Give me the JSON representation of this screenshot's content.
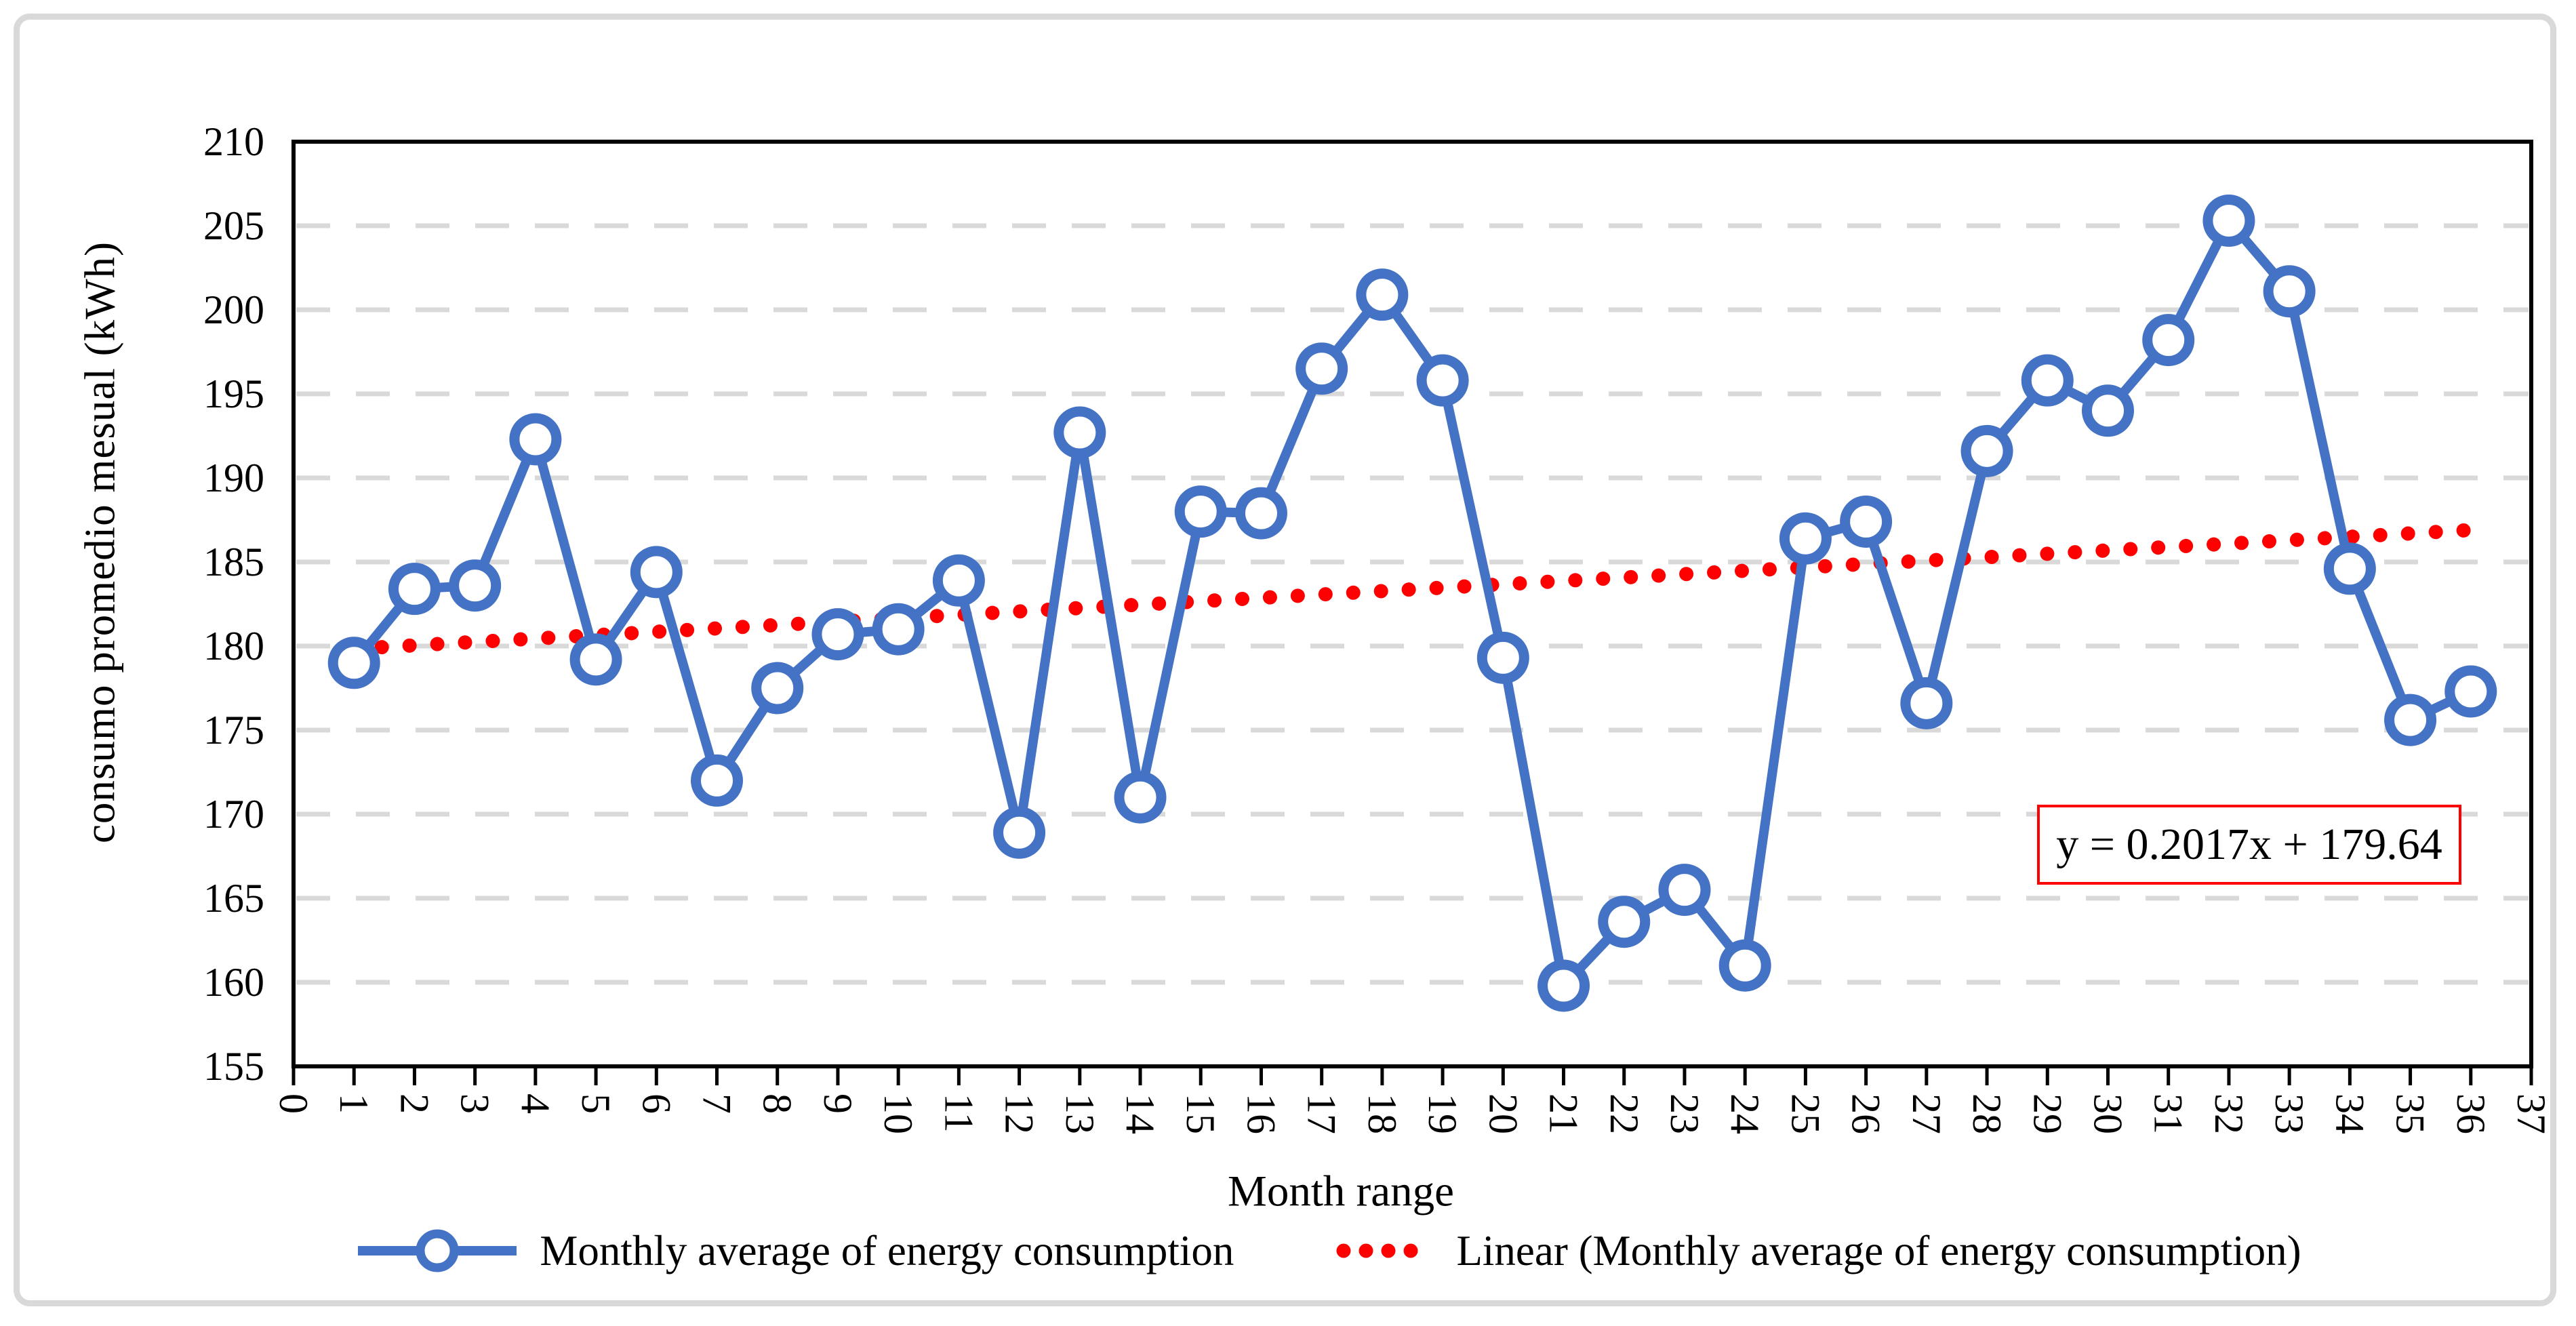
{
  "figure": {
    "background": "#ffffff",
    "border_color": "#d9d9d9"
  },
  "colors": {
    "series_blue": "#4472c4",
    "trendline_red": "#ff0000",
    "gridline_gray": "#d9d9d9",
    "axis_black": "#000000"
  },
  "chart_data": {
    "type": "line",
    "title": "",
    "xlabel": "Month range",
    "ylabel": "consumo promedio mesual (kWh)",
    "x": [
      1,
      2,
      3,
      4,
      5,
      6,
      7,
      8,
      9,
      10,
      11,
      12,
      13,
      14,
      15,
      16,
      17,
      18,
      19,
      20,
      21,
      22,
      23,
      24,
      25,
      26,
      27,
      28,
      29,
      30,
      31,
      32,
      33,
      34,
      35,
      36
    ],
    "series": [
      {
        "name": "Monthly average of energy consumption",
        "values": [
          179.0,
          183.4,
          183.6,
          192.3,
          179.2,
          184.4,
          172.0,
          177.5,
          180.7,
          181.0,
          183.9,
          168.9,
          192.7,
          171.0,
          188.0,
          187.9,
          196.5,
          200.9,
          195.8,
          179.3,
          159.8,
          163.6,
          165.5,
          161.0,
          186.4,
          187.4,
          176.6,
          191.6,
          195.8,
          194.0,
          198.2,
          205.3,
          201.1,
          184.6,
          175.6,
          177.3
        ]
      }
    ],
    "trendline": {
      "name": "Linear (Monthly average of energy consumption)",
      "equation": "y = 0.2017x + 179.64",
      "slope": 0.2017,
      "intercept": 179.64,
      "x_start": 1,
      "x_end": 36
    },
    "xlim": [
      0,
      37
    ],
    "ylim": [
      155,
      210
    ],
    "xtick_step": 1,
    "ytick_step": 5,
    "grid": "horizontal-dashed",
    "legend_position": "bottom"
  },
  "legend": {
    "series_label": "Monthly average of energy consumption",
    "trendline_label": "Linear (Monthly average of energy consumption)"
  },
  "annotation": {
    "equation_text": "y = 0.2017x + 179.64"
  }
}
